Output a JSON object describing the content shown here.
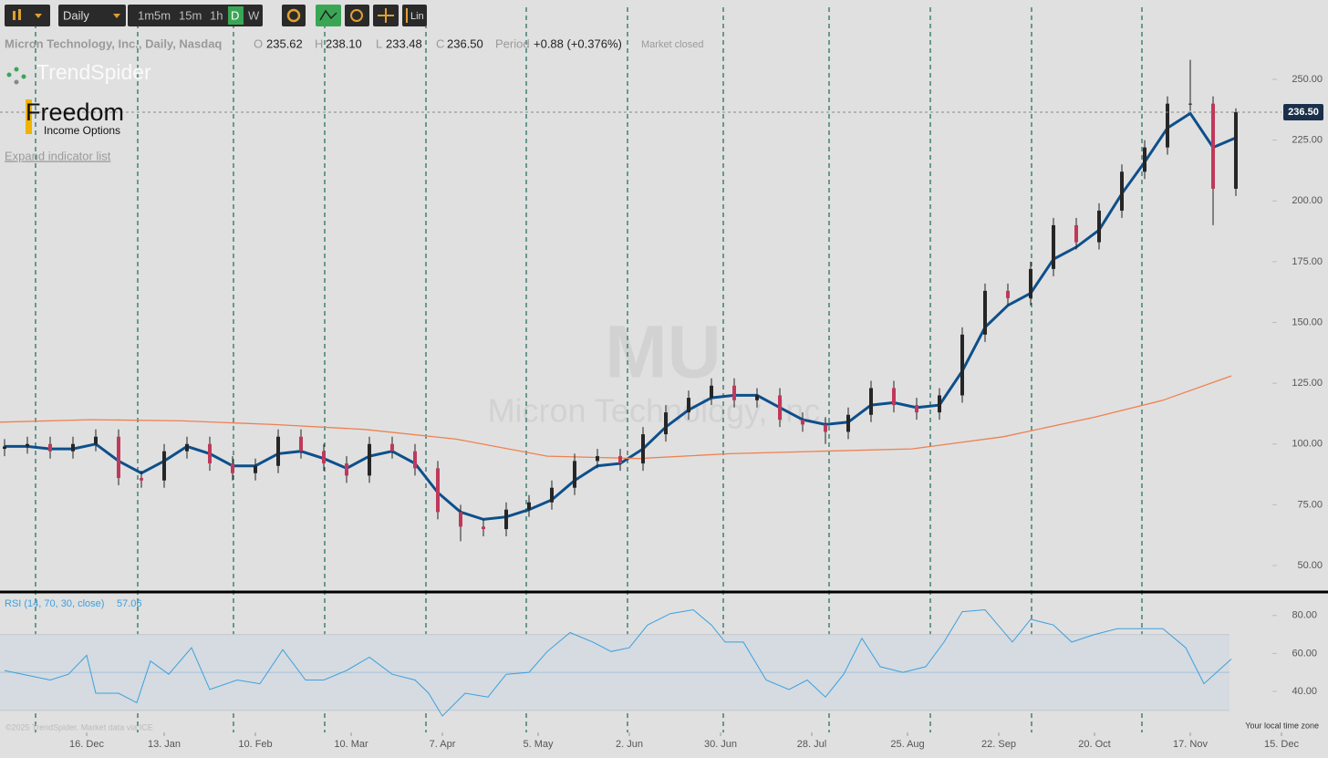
{
  "toolbar": {
    "timeframe": "Daily",
    "intervals": [
      "1m",
      "5m",
      "15m",
      "1h",
      "D",
      "W"
    ],
    "scale": "Lin"
  },
  "header": {
    "symbol": "Micron Technology, Inc., Daily, Nasdaq",
    "open_label": "O",
    "open": "235.62",
    "high_label": "H",
    "high": "238.10",
    "low_label": "L",
    "low": "233.48",
    "close_label": "C",
    "close": "236.50",
    "period_label": "Period",
    "period_change": "+0.88 (+0.376%)",
    "status": "Market closed"
  },
  "logos": {
    "trendspider": "TrendSpider",
    "freedom": "Freedom",
    "freedom_sub": "Income Options"
  },
  "expand_link": "Expand indicator list",
  "watermark": {
    "symbol": "MU",
    "name": "Micron Technology, Inc."
  },
  "footer": {
    "copyright": "©2025 TrendSpider. Market data via ICE",
    "timezone": "Your local time zone"
  },
  "chart_data": [
    {
      "type": "candlestick",
      "x": [
        1,
        6,
        11,
        16,
        21,
        26,
        31,
        36,
        41,
        46,
        51,
        56,
        61,
        66,
        71,
        76,
        81,
        86,
        91,
        96,
        101,
        106,
        111,
        116,
        121,
        126,
        131,
        136,
        141,
        146,
        151,
        156,
        161,
        166,
        171,
        176,
        181,
        186,
        191,
        196,
        201,
        206,
        211,
        216,
        221,
        226,
        231,
        236,
        241,
        246,
        251,
        256,
        261,
        266,
        271
      ],
      "open": [
        98,
        99,
        100,
        97,
        100,
        103,
        86,
        85,
        97,
        100,
        92,
        88,
        91,
        103,
        97,
        92,
        87,
        100,
        97,
        90,
        72,
        66,
        65,
        73,
        76,
        82,
        93,
        95,
        92,
        104,
        113,
        119,
        124,
        118,
        120,
        110,
        108,
        105,
        112,
        123,
        116,
        113,
        120,
        145,
        163,
        160,
        172,
        190,
        183,
        196,
        212,
        222,
        240,
        240,
        205
      ],
      "high": [
        102,
        103,
        103,
        103,
        106,
        106,
        89,
        100,
        103,
        103,
        95,
        94,
        106,
        106,
        100,
        95,
        103,
        103,
        100,
        93,
        75,
        69,
        76,
        79,
        85,
        96,
        98,
        98,
        107,
        116,
        122,
        127,
        127,
        123,
        123,
        113,
        111,
        115,
        126,
        126,
        119,
        123,
        148,
        166,
        166,
        175,
        193,
        193,
        199,
        215,
        225,
        243,
        258,
        243,
        238.1
      ],
      "low": [
        95,
        96,
        94,
        94,
        97,
        83,
        82,
        82,
        94,
        89,
        85,
        85,
        88,
        94,
        89,
        84,
        84,
        94,
        87,
        69,
        60,
        62,
        62,
        70,
        73,
        79,
        90,
        89,
        89,
        101,
        110,
        116,
        115,
        115,
        107,
        105,
        100,
        102,
        109,
        113,
        110,
        110,
        117,
        142,
        157,
        157,
        169,
        180,
        180,
        193,
        209,
        219,
        237,
        190,
        202
      ],
      "close": [
        99,
        100,
        97,
        100,
        103,
        86,
        85,
        97,
        100,
        92,
        88,
        91,
        103,
        97,
        92,
        87,
        100,
        97,
        90,
        72,
        66,
        65,
        73,
        76,
        82,
        93,
        95,
        92,
        104,
        113,
        119,
        124,
        118,
        120,
        110,
        108,
        105,
        112,
        123,
        116,
        113,
        120,
        145,
        163,
        160,
        172,
        190,
        183,
        196,
        212,
        222,
        240,
        240,
        205,
        236.5
      ],
      "up_color": "#262626",
      "down_color": "#c0395a",
      "series": [
        {
          "color": "#0d4f8b",
          "x": [
            1,
            6,
            11,
            16,
            21,
            26,
            31,
            36,
            41,
            46,
            51,
            56,
            61,
            66,
            71,
            76,
            81,
            86,
            91,
            96,
            101,
            106,
            111,
            116,
            121,
            126,
            131,
            136,
            141,
            146,
            151,
            156,
            161,
            166,
            171,
            176,
            181,
            186,
            191,
            196,
            201,
            206,
            211,
            216,
            221,
            226,
            231,
            236,
            241,
            246,
            251,
            256,
            261,
            266,
            271
          ],
          "values": [
            99,
            99,
            98,
            98,
            100,
            93,
            88,
            93,
            99,
            96,
            91,
            91,
            96,
            97,
            94,
            90,
            95,
            97,
            92,
            80,
            72,
            69,
            70,
            73,
            77,
            85,
            91,
            92,
            98,
            107,
            114,
            119,
            120,
            120,
            115,
            110,
            108,
            109,
            116,
            117,
            115,
            116,
            130,
            148,
            157,
            162,
            176,
            181,
            188,
            203,
            216,
            230,
            236,
            222,
            226
          ]
        },
        {
          "color": "#f08050",
          "x": [
            0,
            20,
            40,
            60,
            80,
            100,
            120,
            140,
            160,
            180,
            200,
            220,
            240,
            255,
            270
          ],
          "values": [
            109,
            110,
            109.5,
            108,
            106,
            102,
            95,
            94,
            96,
            97,
            98,
            103,
            111,
            118,
            128
          ]
        }
      ],
      "xlim": [
        0,
        285
      ],
      "xticks": [
        {
          "value": 19,
          "label": "16. Dec"
        },
        {
          "value": 36,
          "label": "13. Jan"
        },
        {
          "value": 56,
          "label": "10. Feb"
        },
        {
          "value": 77,
          "label": "10. Mar"
        },
        {
          "value": 97,
          "label": "7. Apr"
        },
        {
          "value": 118,
          "label": "5. May"
        },
        {
          "value": 138,
          "label": "2. Jun"
        },
        {
          "value": 158,
          "label": "30. Jun"
        },
        {
          "value": 178,
          "label": "28. Jul"
        },
        {
          "value": 199,
          "label": "25. Aug"
        },
        {
          "value": 219,
          "label": "22. Sep"
        },
        {
          "value": 240,
          "label": "20. Oct"
        },
        {
          "value": 261,
          "label": "17. Nov"
        },
        {
          "value": 281,
          "label": "15. Dec"
        }
      ],
      "ylim": [
        40,
        260
      ],
      "yticks": [
        {
          "value": 50,
          "label": "50.00"
        },
        {
          "value": 75,
          "label": "75.00"
        },
        {
          "value": 100,
          "label": "100.00"
        },
        {
          "value": 125,
          "label": "125.00"
        },
        {
          "value": 150,
          "label": "150.00"
        },
        {
          "value": 175,
          "label": "175.00"
        },
        {
          "value": 200,
          "label": "200.00"
        },
        {
          "value": 225,
          "label": "225.00"
        },
        {
          "value": 250,
          "label": "250.00"
        }
      ],
      "vlines": [
        7.8,
        30.2,
        51.2,
        71.2,
        93.4,
        115.4,
        137.6,
        158.6,
        181.8,
        204,
        226.2,
        250.4
      ],
      "last_price": {
        "value": 236.5,
        "label": "236.50"
      }
    },
    {
      "type": "line",
      "series": [
        {
          "name": "RSI (14, 70, 30, close)",
          "color": "#3aa0e0",
          "x": [
            1,
            5,
            11,
            15,
            19,
            21,
            26,
            30,
            33,
            37,
            42,
            46,
            52,
            57,
            62,
            67,
            71,
            76,
            81,
            86,
            91,
            94,
            97,
            102,
            107,
            111,
            116,
            120,
            125,
            130,
            134,
            138,
            142,
            147,
            152,
            156,
            159,
            163,
            168,
            173,
            177,
            181,
            185,
            189,
            193,
            198,
            203,
            207,
            211,
            216,
            222,
            226,
            231,
            235,
            240,
            245,
            250,
            255,
            260,
            264,
            270
          ],
          "values": [
            51,
            49,
            46,
            49,
            59,
            39,
            39,
            34,
            56,
            49,
            63,
            41,
            46,
            44,
            62,
            46,
            46,
            51,
            58,
            49,
            46,
            39,
            27,
            39,
            37,
            49,
            50,
            61,
            71,
            66,
            61,
            63,
            75,
            81,
            83,
            75,
            66,
            66,
            46,
            41,
            46,
            37,
            49,
            68,
            53,
            50,
            53,
            66,
            82,
            83,
            66,
            78,
            75,
            66,
            70,
            73,
            73,
            73,
            63,
            44,
            57.06
          ]
        }
      ],
      "xlim": [
        0,
        285
      ],
      "ylim": [
        20,
        90
      ],
      "yticks": [
        {
          "value": 40,
          "label": "40.00"
        },
        {
          "value": 60,
          "label": "60.00"
        },
        {
          "value": 80,
          "label": "80.00"
        }
      ],
      "levels": [
        30,
        50,
        70
      ]
    }
  ]
}
